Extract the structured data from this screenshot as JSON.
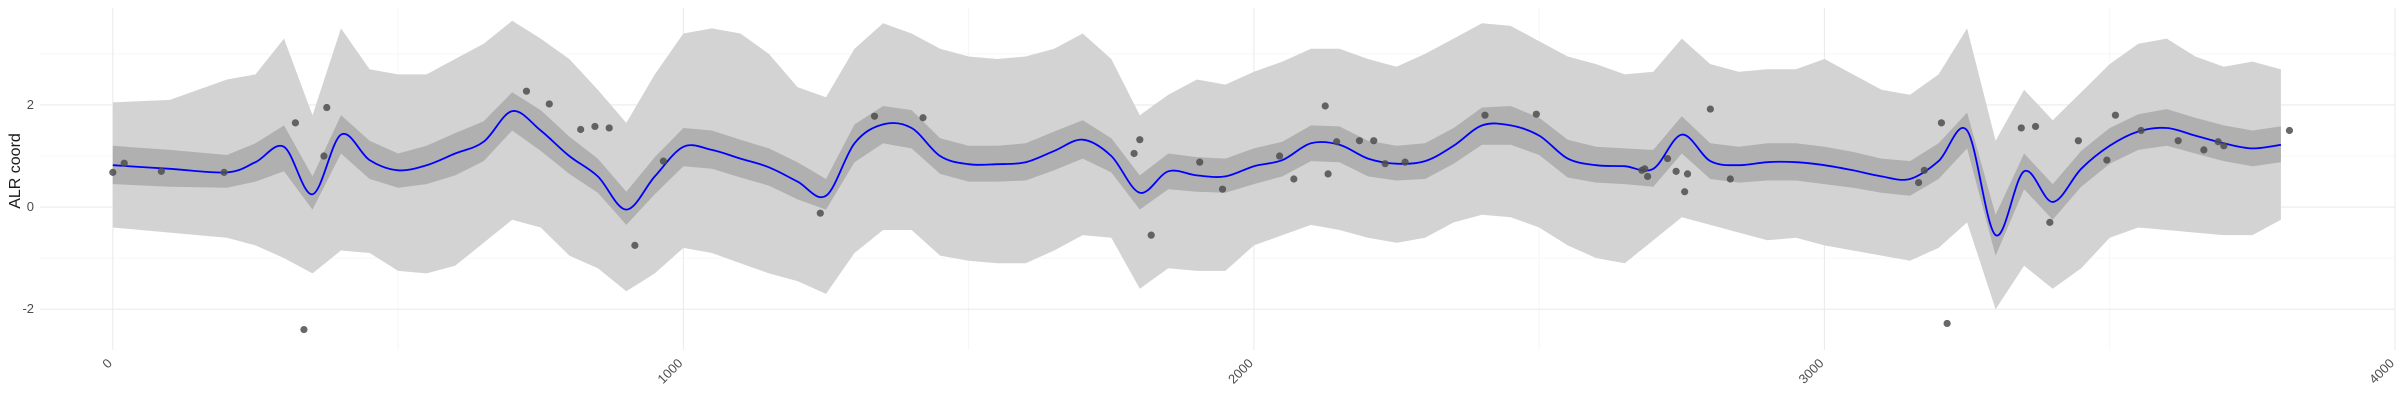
{
  "chart_data": {
    "type": "line",
    "title": "",
    "xlabel": "",
    "ylabel": "ALR coord",
    "xlim": [
      -40,
      4000
    ],
    "ylim": [
      -2.8,
      3.9
    ],
    "grid": true,
    "x_ticks": [
      0,
      1000,
      2000,
      3000,
      4000
    ],
    "x_tick_labels": [
      "0",
      "1000",
      "2000",
      "3000",
      "4000"
    ],
    "y_ticks": [
      -2,
      0,
      2
    ],
    "y_tick_labels": [
      "-2",
      "0",
      "2"
    ],
    "colors": {
      "mean_line": "#0000ff",
      "inner_band": "#b0b0b0",
      "outer_band": "#d3d3d3",
      "points": "#4d4d4d"
    },
    "mean": {
      "x": [
        0,
        100,
        200,
        250,
        300,
        350,
        400,
        450,
        500,
        550,
        600,
        650,
        700,
        750,
        800,
        850,
        900,
        950,
        1000,
        1050,
        1100,
        1150,
        1200,
        1250,
        1300,
        1350,
        1400,
        1450,
        1500,
        1550,
        1600,
        1650,
        1700,
        1750,
        1800,
        1850,
        1900,
        1950,
        2000,
        2050,
        2100,
        2150,
        2200,
        2250,
        2300,
        2350,
        2400,
        2450,
        2500,
        2550,
        2600,
        2650,
        2700,
        2750,
        2800,
        2850,
        2900,
        2950,
        3000,
        3050,
        3100,
        3150,
        3200,
        3250,
        3300,
        3350,
        3400,
        3450,
        3500,
        3550,
        3600,
        3650,
        3700,
        3750,
        3800
      ],
      "y": [
        0.82,
        0.75,
        0.68,
        0.88,
        1.18,
        0.25,
        1.42,
        0.92,
        0.72,
        0.82,
        1.05,
        1.28,
        1.88,
        1.5,
        1.0,
        0.6,
        -0.05,
        0.6,
        1.18,
        1.12,
        0.95,
        0.78,
        0.5,
        0.22,
        1.25,
        1.62,
        1.55,
        1.0,
        0.84,
        0.84,
        0.88,
        1.1,
        1.32,
        1.0,
        0.28,
        0.7,
        0.62,
        0.6,
        0.8,
        0.92,
        1.25,
        1.22,
        0.95,
        0.85,
        0.9,
        1.2,
        1.6,
        1.6,
        1.4,
        0.95,
        0.82,
        0.8,
        0.75,
        1.42,
        0.9,
        0.82,
        0.88,
        0.88,
        0.82,
        0.72,
        0.6,
        0.55,
        0.9,
        1.5,
        -0.55,
        0.7,
        0.1,
        0.75,
        1.2,
        1.48,
        1.55,
        1.4,
        1.25,
        1.15,
        1.22
      ]
    },
    "inner_band": {
      "lower": [
        0.45,
        0.4,
        0.38,
        0.5,
        0.7,
        -0.05,
        1.05,
        0.55,
        0.38,
        0.45,
        0.62,
        0.9,
        1.5,
        1.1,
        0.65,
        0.28,
        -0.35,
        0.25,
        0.8,
        0.75,
        0.58,
        0.42,
        0.15,
        -0.05,
        0.88,
        1.25,
        1.15,
        0.65,
        0.5,
        0.5,
        0.52,
        0.72,
        0.95,
        0.68,
        -0.05,
        0.35,
        0.3,
        0.28,
        0.45,
        0.6,
        0.9,
        0.88,
        0.6,
        0.52,
        0.55,
        0.85,
        1.22,
        1.22,
        1.02,
        0.58,
        0.48,
        0.45,
        0.4,
        1.05,
        0.55,
        0.48,
        0.52,
        0.52,
        0.45,
        0.38,
        0.28,
        0.22,
        0.55,
        1.15,
        -0.95,
        0.35,
        -0.25,
        0.4,
        0.85,
        1.12,
        1.2,
        1.05,
        0.9,
        0.8,
        0.88
      ],
      "upper": [
        1.2,
        1.12,
        1.02,
        1.25,
        1.6,
        0.6,
        1.8,
        1.3,
        1.05,
        1.2,
        1.45,
        1.68,
        2.25,
        1.9,
        1.38,
        0.95,
        0.3,
        0.98,
        1.55,
        1.5,
        1.32,
        1.15,
        0.88,
        0.55,
        1.62,
        1.98,
        1.9,
        1.35,
        1.2,
        1.2,
        1.25,
        1.48,
        1.7,
        1.35,
        0.62,
        1.05,
        0.98,
        0.95,
        1.15,
        1.28,
        1.6,
        1.58,
        1.3,
        1.2,
        1.25,
        1.55,
        1.95,
        1.98,
        1.75,
        1.32,
        1.18,
        1.15,
        1.12,
        1.78,
        1.25,
        1.18,
        1.25,
        1.25,
        1.18,
        1.08,
        0.95,
        0.9,
        1.25,
        1.85,
        -0.15,
        1.05,
        0.45,
        1.1,
        1.55,
        1.82,
        1.92,
        1.75,
        1.6,
        1.5,
        1.58
      ]
    },
    "outer_band": {
      "lower": [
        -0.4,
        -0.5,
        -0.6,
        -0.75,
        -1.0,
        -1.3,
        -0.85,
        -0.9,
        -1.25,
        -1.3,
        -1.15,
        -0.7,
        -0.25,
        -0.4,
        -0.95,
        -1.2,
        -1.65,
        -1.3,
        -0.8,
        -0.9,
        -1.1,
        -1.3,
        -1.45,
        -1.7,
        -0.9,
        -0.45,
        -0.45,
        -0.95,
        -1.05,
        -1.1,
        -1.1,
        -0.85,
        -0.55,
        -0.6,
        -1.6,
        -1.2,
        -1.25,
        -1.25,
        -0.75,
        -0.55,
        -0.35,
        -0.45,
        -0.6,
        -0.7,
        -0.6,
        -0.3,
        -0.15,
        -0.2,
        -0.4,
        -0.75,
        -1.0,
        -1.1,
        -0.65,
        -0.2,
        -0.35,
        -0.5,
        -0.65,
        -0.6,
        -0.75,
        -0.85,
        -0.95,
        -1.05,
        -0.8,
        -0.3,
        -2.0,
        -1.15,
        -1.6,
        -1.2,
        -0.6,
        -0.4,
        -0.45,
        -0.5,
        -0.55,
        -0.55,
        -0.25
      ],
      "upper": [
        2.05,
        2.1,
        2.5,
        2.6,
        3.3,
        1.8,
        3.5,
        2.7,
        2.6,
        2.6,
        2.9,
        3.2,
        3.65,
        3.3,
        2.9,
        2.3,
        1.65,
        2.6,
        3.4,
        3.5,
        3.4,
        3.0,
        2.35,
        2.15,
        3.1,
        3.6,
        3.4,
        3.1,
        2.95,
        2.9,
        2.95,
        3.1,
        3.4,
        2.9,
        1.8,
        2.2,
        2.5,
        2.4,
        2.65,
        2.85,
        3.1,
        3.1,
        2.9,
        2.75,
        3.0,
        3.3,
        3.6,
        3.55,
        3.25,
        2.95,
        2.8,
        2.6,
        2.65,
        3.3,
        2.8,
        2.65,
        2.7,
        2.7,
        2.9,
        2.6,
        2.3,
        2.2,
        2.6,
        3.5,
        1.3,
        2.3,
        1.7,
        2.25,
        2.8,
        3.2,
        3.3,
        2.95,
        2.75,
        2.85,
        2.7
      ]
    },
    "points": {
      "x": [
        0,
        20,
        85,
        195,
        320,
        335,
        370,
        375,
        725,
        765,
        820,
        845,
        870,
        915,
        965,
        1240,
        1335,
        1420,
        1790,
        1800,
        1820,
        1905,
        1945,
        2045,
        2070,
        2125,
        2130,
        2145,
        2185,
        2210,
        2230,
        2265,
        2405,
        2495,
        2680,
        2685,
        2690,
        2725,
        2740,
        2755,
        2760,
        2800,
        2835,
        3165,
        3175,
        3205,
        3215,
        3345,
        3370,
        3395,
        3445,
        3495,
        3510,
        3555,
        3620,
        3665,
        3690,
        3700,
        3815
      ],
      "y": [
        0.68,
        0.86,
        0.7,
        0.68,
        1.65,
        -2.4,
        1.0,
        1.95,
        2.27,
        2.02,
        1.52,
        1.58,
        1.55,
        -0.75,
        0.9,
        -0.12,
        1.78,
        1.75,
        1.05,
        1.32,
        -0.55,
        0.88,
        0.35,
        1.0,
        0.55,
        1.98,
        0.65,
        1.28,
        1.3,
        1.3,
        0.85,
        0.88,
        1.8,
        1.82,
        0.72,
        0.75,
        0.6,
        0.95,
        0.7,
        0.3,
        0.65,
        1.92,
        0.55,
        0.48,
        0.72,
        1.65,
        -2.28,
        1.55,
        1.58,
        -0.3,
        1.3,
        0.92,
        1.8,
        1.5,
        1.3,
        1.12,
        1.28,
        1.2,
        1.5
      ]
    }
  }
}
